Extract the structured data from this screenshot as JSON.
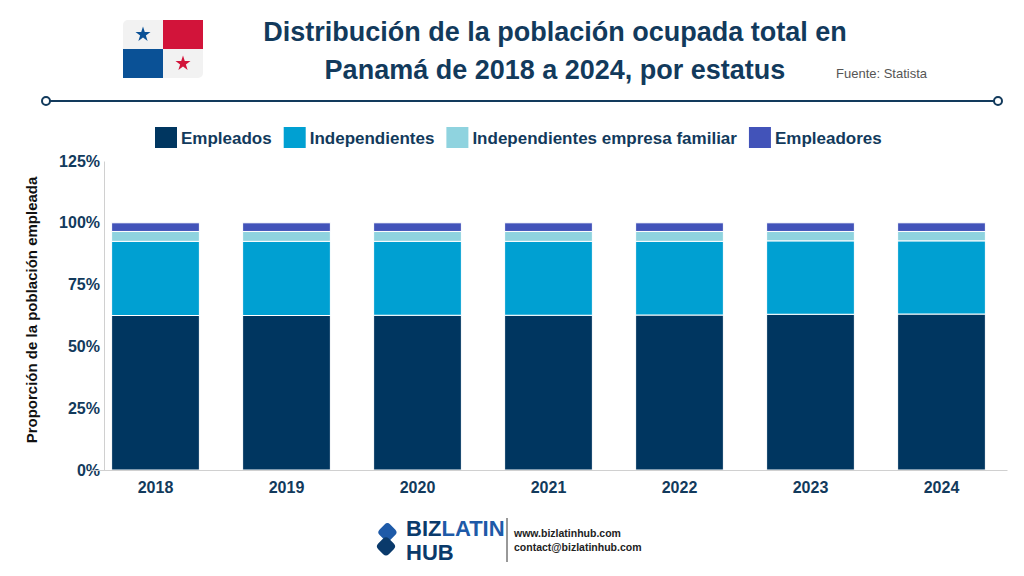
{
  "chart_data": {
    "type": "bar",
    "stacked": true,
    "title": [
      "Distribución de la población ocupada total en",
      "Panamá de 2018 a 2024, por estatus"
    ],
    "source": "Fuente:  Statista",
    "y_label": "Proporción de la población empleada",
    "categories": [
      "2018",
      "2019",
      "2020",
      "2021",
      "2022",
      "2023",
      "2024"
    ],
    "series": [
      {
        "name": "Empleados",
        "color": "#003660",
        "values": [
          62.5,
          62.5,
          62.6,
          62.6,
          62.7,
          63.0,
          63.1
        ]
      },
      {
        "name": "Independientes",
        "color": "#00a0d2",
        "values": [
          30.0,
          30.0,
          29.9,
          29.9,
          29.8,
          29.7,
          29.6
        ]
      },
      {
        "name": "Independientes empresa familiar",
        "color": "#8fd3df",
        "values": [
          4.0,
          4.0,
          4.0,
          4.0,
          4.0,
          3.8,
          3.8
        ]
      },
      {
        "name": "Empleadores",
        "color": "#4253b9",
        "values": [
          3.5,
          3.5,
          3.5,
          3.5,
          3.5,
          3.5,
          3.5
        ]
      }
    ],
    "ylim": [
      0,
      125
    ],
    "yticks": [
      {
        "value": 0,
        "label": "0%"
      },
      {
        "value": 25,
        "label": "25%"
      },
      {
        "value": 50,
        "label": "50%"
      },
      {
        "value": 75,
        "label": "75%"
      },
      {
        "value": 100,
        "label": "100%"
      },
      {
        "value": 125,
        "label": "125%"
      }
    ],
    "grid": false,
    "legend": "top",
    "annotations": [
      "BIZ",
      "LATIN",
      "HUB",
      "www.bizlatinhub.com",
      "contact@bizlatinhub.com"
    ]
  }
}
